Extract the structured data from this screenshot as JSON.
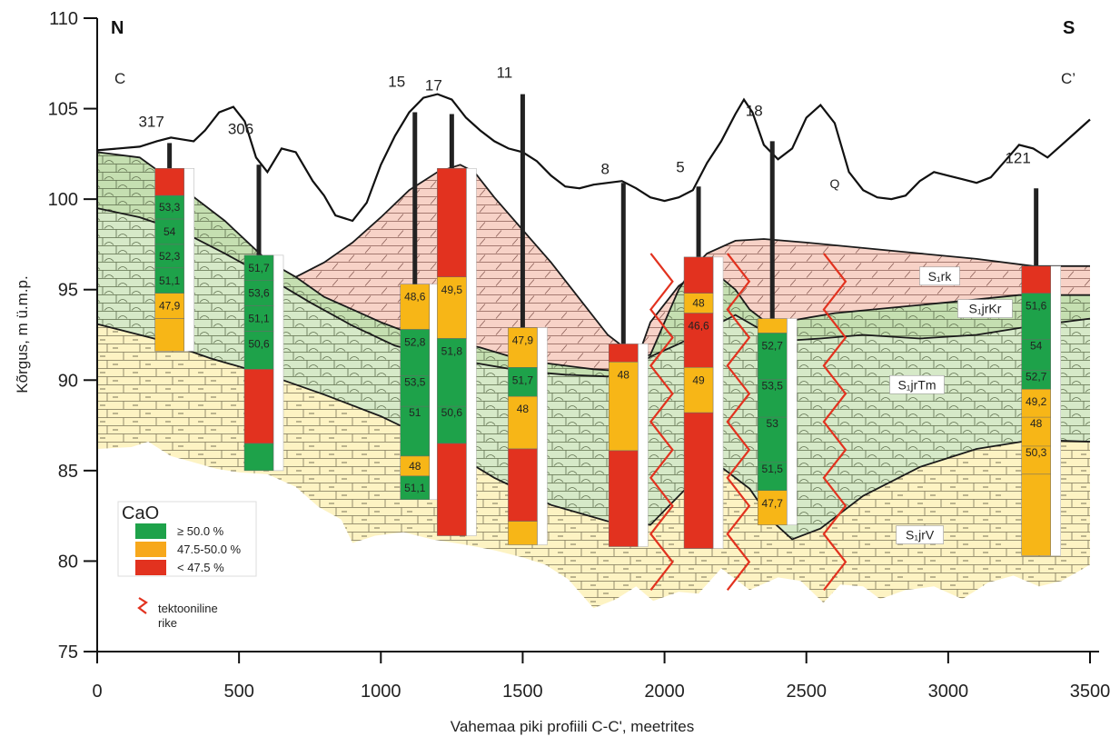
{
  "chart_data": {
    "type": "geological-cross-section",
    "xlabel": "Vahemaa piki profiili C-C', meetrites",
    "ylabel": "Kõrgus, m ü.m.p.",
    "xlim": [
      0,
      3500
    ],
    "ylim": [
      75,
      110
    ],
    "x_ticks": [
      "0",
      "500",
      "1000",
      "1500",
      "2000",
      "2500",
      "3000",
      "3500"
    ],
    "y_ticks": [
      "75",
      "80",
      "85",
      "90",
      "95",
      "100",
      "105",
      "110"
    ],
    "corner_labels": {
      "north": "N",
      "south": "S",
      "start": "C",
      "end": "C’"
    },
    "layer_labels": [
      {
        "text": "Q",
        "x": 2600,
        "y": 100.6
      },
      {
        "text": "S₁rk",
        "x": 2970,
        "y": 95.6
      },
      {
        "text": "S₁jrKr",
        "x": 3130,
        "y": 93.8
      },
      {
        "text": "S₁jrTm",
        "x": 2890,
        "y": 89.6
      },
      {
        "text": "S₁jrV",
        "x": 2900,
        "y": 81.3
      }
    ],
    "surface": [
      [
        0,
        102.7
      ],
      [
        150,
        102.9
      ],
      [
        210,
        103.2
      ],
      [
        260,
        103.4
      ],
      [
        300,
        103.3
      ],
      [
        340,
        103.2
      ],
      [
        380,
        103.8
      ],
      [
        430,
        104.8
      ],
      [
        480,
        105.1
      ],
      [
        520,
        104.3
      ],
      [
        560,
        102.3
      ],
      [
        600,
        101.5
      ],
      [
        650,
        102.8
      ],
      [
        700,
        102.6
      ],
      [
        760,
        101.0
      ],
      [
        800,
        100.2
      ],
      [
        840,
        99.1
      ],
      [
        900,
        98.8
      ],
      [
        950,
        99.8
      ],
      [
        1000,
        101.9
      ],
      [
        1050,
        103.5
      ],
      [
        1100,
        104.8
      ],
      [
        1150,
        105.6
      ],
      [
        1200,
        105.8
      ],
      [
        1250,
        105.5
      ],
      [
        1300,
        104.5
      ],
      [
        1350,
        103.8
      ],
      [
        1400,
        103.2
      ],
      [
        1450,
        102.8
      ],
      [
        1500,
        102.6
      ],
      [
        1550,
        102.1
      ],
      [
        1600,
        101.3
      ],
      [
        1650,
        100.7
      ],
      [
        1700,
        100.6
      ],
      [
        1750,
        100.8
      ],
      [
        1800,
        100.9
      ],
      [
        1850,
        101.0
      ],
      [
        1900,
        100.6
      ],
      [
        1950,
        100.1
      ],
      [
        2000,
        99.9
      ],
      [
        2050,
        100.1
      ],
      [
        2100,
        100.5
      ],
      [
        2150,
        102.0
      ],
      [
        2200,
        103.2
      ],
      [
        2250,
        104.7
      ],
      [
        2280,
        105.5
      ],
      [
        2310,
        104.8
      ],
      [
        2350,
        103.0
      ],
      [
        2400,
        102.2
      ],
      [
        2450,
        102.8
      ],
      [
        2500,
        104.5
      ],
      [
        2550,
        105.2
      ],
      [
        2600,
        104.2
      ],
      [
        2650,
        101.5
      ],
      [
        2700,
        100.5
      ],
      [
        2750,
        100.1
      ],
      [
        2800,
        100.0
      ],
      [
        2850,
        100.2
      ],
      [
        2900,
        101.0
      ],
      [
        2950,
        101.5
      ],
      [
        3000,
        101.3
      ],
      [
        3050,
        101.1
      ],
      [
        3100,
        100.9
      ],
      [
        3150,
        101.2
      ],
      [
        3200,
        102.1
      ],
      [
        3250,
        103.0
      ],
      [
        3300,
        102.8
      ],
      [
        3350,
        102.3
      ],
      [
        3400,
        103.0
      ],
      [
        3450,
        103.7
      ],
      [
        3500,
        104.4
      ]
    ],
    "boreholes": [
      {
        "id": "317",
        "x": 255,
        "top": 103.1,
        "label_y": 104.0,
        "intervals": [
          {
            "top": 101.7,
            "bottom": 100.2,
            "class": "low",
            "value": ""
          },
          {
            "top": 100.2,
            "bottom": 98.9,
            "class": "high",
            "value": "53,3"
          },
          {
            "top": 98.9,
            "bottom": 97.5,
            "class": "high",
            "value": "54"
          },
          {
            "top": 97.5,
            "bottom": 96.2,
            "class": "high",
            "value": "52,3"
          },
          {
            "top": 96.2,
            "bottom": 94.8,
            "class": "high",
            "value": "51,1"
          },
          {
            "top": 94.8,
            "bottom": 93.4,
            "class": "mid",
            "value": "47,9"
          },
          {
            "top": 93.4,
            "bottom": 91.6,
            "class": "mid",
            "value": ""
          }
        ]
      },
      {
        "id": "306",
        "x": 570,
        "top": 101.9,
        "label_y": 103.6,
        "intervals": [
          {
            "top": 96.9,
            "bottom": 95.5,
            "class": "high",
            "value": "51,7"
          },
          {
            "top": 95.5,
            "bottom": 94.1,
            "class": "high",
            "value": "53,6"
          },
          {
            "top": 94.1,
            "bottom": 92.7,
            "class": "high",
            "value": "51,1"
          },
          {
            "top": 92.7,
            "bottom": 90.6,
            "class": "high",
            "value": "50,6"
          },
          {
            "top": 90.6,
            "bottom": 86.5,
            "class": "low",
            "value": ""
          },
          {
            "top": 86.5,
            "bottom": 85.0,
            "class": "high",
            "value": ""
          }
        ]
      },
      {
        "id": "15",
        "x": 1120,
        "top": 104.8,
        "label_y": 106.2,
        "intervals": [
          {
            "top": 95.3,
            "bottom": 92.8,
            "class": "mid",
            "value": "48,6"
          },
          {
            "top": 92.8,
            "bottom": 85.8,
            "class": "high",
            "value": "52,8"
          },
          {
            "top": 85.8,
            "bottom": 84.7,
            "class": "mid",
            "value": "48"
          },
          {
            "top": 84.7,
            "bottom": 83.4,
            "class": "high",
            "value": "51,1"
          }
        ]
      },
      {
        "id": "17",
        "x": 1250,
        "top": 104.7,
        "label_y": 106.0,
        "intervals": [
          {
            "top": 101.7,
            "bottom": 95.7,
            "class": "low",
            "value": ""
          },
          {
            "top": 95.7,
            "bottom": 92.3,
            "class": "mid",
            "value": "49,5"
          },
          {
            "top": 92.3,
            "bottom": 86.5,
            "class": "high",
            "value": "51,8"
          },
          {
            "top": 86.5,
            "bottom": 81.4,
            "class": "low",
            "value": ""
          }
        ]
      },
      {
        "id": "11",
        "x": 1500,
        "top": 105.8,
        "label_y": 106.7,
        "intervals": [
          {
            "top": 92.9,
            "bottom": 90.7,
            "class": "mid",
            "value": "47,9"
          },
          {
            "top": 90.7,
            "bottom": 89.1,
            "class": "high",
            "value": "51,7"
          },
          {
            "top": 89.1,
            "bottom": 86.2,
            "class": "mid",
            "value": "48"
          },
          {
            "top": 86.2,
            "bottom": 82.2,
            "class": "low",
            "value": ""
          },
          {
            "top": 82.2,
            "bottom": 80.9,
            "class": "mid",
            "value": ""
          }
        ]
      },
      {
        "id": "8",
        "x": 1855,
        "top": 100.9,
        "label_y": 101.4,
        "intervals": [
          {
            "top": 92.0,
            "bottom": 91.0,
            "class": "low",
            "value": ""
          },
          {
            "top": 91.0,
            "bottom": 86.1,
            "class": "mid",
            "value": "48"
          },
          {
            "top": 86.1,
            "bottom": 80.8,
            "class": "low",
            "value": ""
          }
        ]
      },
      {
        "id": "5",
        "x": 2120,
        "top": 100.7,
        "label_y": 101.5,
        "intervals": [
          {
            "top": 96.8,
            "bottom": 94.8,
            "class": "low",
            "value": ""
          },
          {
            "top": 94.8,
            "bottom": 93.7,
            "class": "mid",
            "value": "48"
          },
          {
            "top": 93.7,
            "bottom": 90.7,
            "class": "low",
            "value": "46,6"
          },
          {
            "top": 90.7,
            "bottom": 88.2,
            "class": "mid",
            "value": "49"
          },
          {
            "top": 88.2,
            "bottom": 80.7,
            "class": "low",
            "value": ""
          }
        ]
      },
      {
        "id": "18",
        "x": 2380,
        "top": 103.2,
        "label_y": 104.6,
        "intervals": [
          {
            "top": 93.4,
            "bottom": 92.6,
            "class": "mid",
            "value": ""
          },
          {
            "top": 92.6,
            "bottom": 83.9,
            "class": "high",
            "value": "52,7"
          },
          {
            "top": 83.9,
            "bottom": 82.0,
            "class": "mid",
            "value": "47,7"
          }
        ]
      },
      {
        "id": "121",
        "x": 3310,
        "top": 100.6,
        "label_y": 102.0,
        "intervals": [
          {
            "top": 96.3,
            "bottom": 94.8,
            "class": "low",
            "value": ""
          },
          {
            "top": 94.8,
            "bottom": 89.5,
            "class": "high",
            "value": "51,6"
          },
          {
            "top": 89.5,
            "bottom": 84.8,
            "class": "mid",
            "value": "49,2"
          },
          {
            "top": 84.8,
            "bottom": 80.3,
            "class": "mid",
            "value": ""
          }
        ]
      }
    ],
    "extra_values": [
      {
        "borehole": "15",
        "values": [
          [
            "53,5",
            89.9
          ],
          [
            "51",
            88.2
          ]
        ]
      },
      {
        "borehole": "17",
        "values": [
          [
            "50,6",
            88.2
          ]
        ]
      },
      {
        "borehole": "18",
        "values": [
          [
            "53,5",
            89.7
          ],
          [
            "53",
            87.6
          ],
          [
            "51,5",
            85.1
          ]
        ]
      },
      {
        "borehole": "121",
        "values": [
          [
            "54",
            91.9
          ],
          [
            "52,7",
            90.2
          ],
          [
            "48",
            87.6
          ],
          [
            "50,3",
            86.0
          ]
        ]
      }
    ],
    "faults_x": [
      1990,
      2260,
      2600
    ],
    "legend": {
      "title": "CaO",
      "items": [
        {
          "label": "≥ 50.0 %",
          "color": "#1ea24a"
        },
        {
          "label": "47.5-50.0 %",
          "color": "#f7a81c"
        },
        {
          "label": "< 47.5 %",
          "color": "#e2321f"
        }
      ],
      "fault_label_1": "tektooniline",
      "fault_label_2": "rike"
    },
    "colors": {
      "high": "#1ea24a",
      "mid": "#f7b617",
      "low": "#e2321f",
      "rk_fill": "#f7d2c7",
      "kr_fill": "#c5dfb1",
      "tm_fill": "#d6e9c8",
      "v_fill": "#fdf3c3"
    }
  }
}
